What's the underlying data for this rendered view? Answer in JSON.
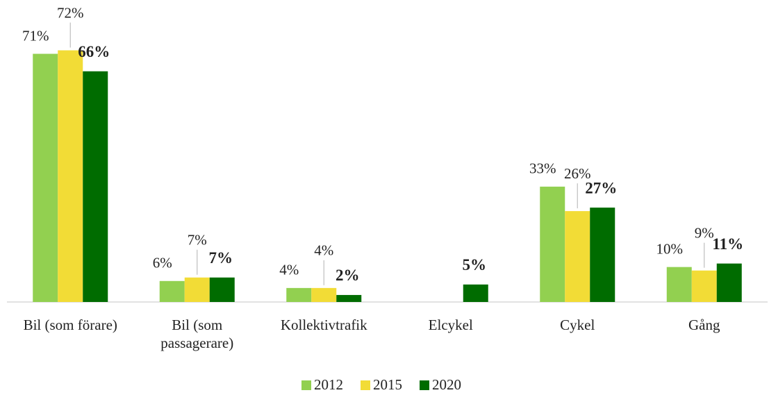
{
  "chart_data": {
    "type": "bar",
    "categories": [
      "Bil (som förare)",
      "Bil (som passagerare)",
      "Kollektivtrafik",
      "Elcykel",
      "Cykel",
      "Gång"
    ],
    "series": [
      {
        "name": "2012",
        "color": "#92d050",
        "values": [
          71,
          6,
          4,
          null,
          33,
          10
        ],
        "value_labels": [
          "71%",
          "6%",
          "4%",
          null,
          "33%",
          "10%"
        ]
      },
      {
        "name": "2015",
        "color": "#f2dc36",
        "values": [
          72,
          7,
          4,
          null,
          26,
          9
        ],
        "value_labels": [
          "72%",
          "7%",
          "4%",
          null,
          "26%",
          "9%"
        ]
      },
      {
        "name": "2020",
        "color": "#006c00",
        "values": [
          66,
          7,
          2,
          5,
          27,
          11
        ],
        "value_labels": [
          "66%",
          "7%",
          "2%",
          "5%",
          "27%",
          "11%"
        ]
      }
    ],
    "ylim": [
      0,
      86
    ]
  }
}
